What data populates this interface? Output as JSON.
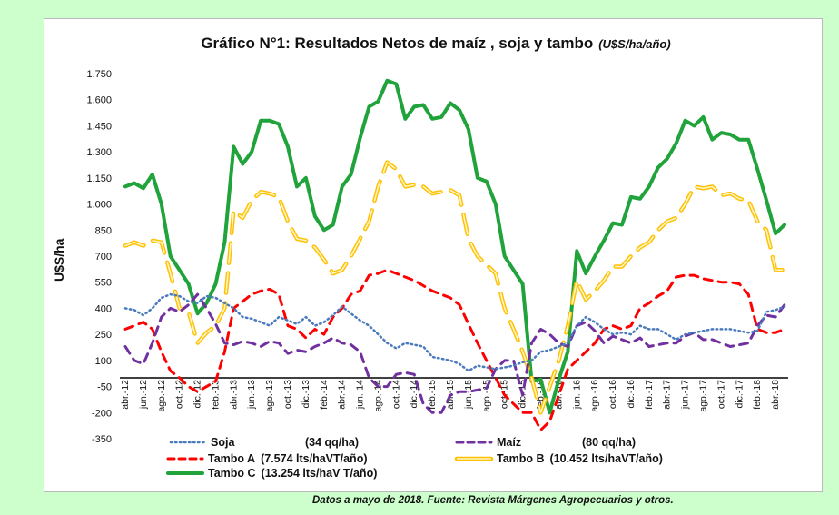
{
  "title": "Gráfico N°1: Resultados Netos de maíz , soja y tambo",
  "title_units": "(U$S/ha/año)",
  "footer": "Datos  a mayo de 2018. Fuente: Revista  Márgenes Agropecuarios  y otros.",
  "chart_data": {
    "type": "line",
    "ylabel": "U$S/ha",
    "ylim": [
      -350,
      1750
    ],
    "yticks": [
      -350,
      -200,
      -50,
      100,
      250,
      400,
      550,
      700,
      850,
      1000,
      1150,
      1300,
      1450,
      1600,
      1750
    ],
    "ytick_labels": [
      "-350",
      "-200",
      "-50",
      "100",
      "250",
      "400",
      "550",
      "700",
      "850",
      "1.000",
      "1.150",
      "1.300",
      "1.450",
      "1.600",
      "1.750"
    ],
    "x": [
      "abr.-12",
      "may.-12",
      "jun.-12",
      "jul.-12",
      "ago.-12",
      "sep.-12",
      "oct.-12",
      "nov.-12",
      "dic.-12",
      "ene.-13",
      "feb.-13",
      "mar.-13",
      "abr.-13",
      "may.-13",
      "jun.-13",
      "jul.-13",
      "ago.-13",
      "sep.-13",
      "oct.-13",
      "nov.-13",
      "dic.-13",
      "ene.-14",
      "feb.-14",
      "mar.-14",
      "abr.-14",
      "may.-14",
      "jun.-14",
      "jul.-14",
      "ago.-14",
      "sep.-14",
      "oct.-14",
      "nov.-14",
      "dic.-14",
      "ene.-15",
      "feb.-15",
      "mar.-15",
      "abr.-15",
      "may.-15",
      "jun.-15",
      "jul.-15",
      "ago.-15",
      "sep.-15",
      "oct.-15",
      "nov.-15",
      "dic.-15",
      "ene.-16",
      "feb.-16",
      "mar.-16",
      "abr.-16",
      "may.-16",
      "jun.-16",
      "jul.-16",
      "ago.-16",
      "sep.-16",
      "oct.-16",
      "nov.-16",
      "dic.-16",
      "ene.-17",
      "feb.-17",
      "mar.-17",
      "abr.-17",
      "may.-17",
      "jun.-17",
      "jul.-17",
      "ago.-17",
      "sep.-17",
      "oct.-17",
      "nov.-17",
      "dic.-17",
      "ene.-18",
      "feb.-18",
      "mar.-18",
      "abr.-18",
      "may.-18"
    ],
    "xtick_labels": [
      "abr.-12",
      "jun.-12",
      "ago.-12",
      "oct.-12",
      "dic.-12",
      "feb.-13",
      "abr.-13",
      "jun.-13",
      "ago.-13",
      "oct.-13",
      "dic.-13",
      "feb.-14",
      "abr.-14",
      "jun.-14",
      "ago.-14",
      "oct.-14",
      "dic.-14",
      "feb.-15",
      "abr.-15",
      "jun.-15",
      "ago.-15",
      "oct.-15",
      "dic.-15",
      "feb.-16",
      "abr.-16",
      "jun.-16",
      "ago.-16",
      "oct.-16",
      "dic.-16",
      "feb.-17",
      "abr.-17",
      "jun.-17",
      "ago.-17",
      "oct.-17",
      "dic.-17",
      "feb.-18",
      "abr.-18"
    ],
    "series": [
      {
        "name": "Soja",
        "detail": "(34 qq/ha)",
        "color": "#4a7bbd",
        "style": "dotted",
        "values": [
          400,
          390,
          360,
          400,
          460,
          480,
          470,
          440,
          430,
          470,
          460,
          430,
          400,
          350,
          340,
          320,
          300,
          350,
          330,
          310,
          350,
          300,
          320,
          360,
          410,
          370,
          330,
          300,
          250,
          200,
          170,
          200,
          190,
          180,
          120,
          110,
          100,
          80,
          40,
          70,
          60,
          50,
          60,
          70,
          90,
          100,
          150,
          160,
          180,
          200,
          300,
          350,
          320,
          280,
          250,
          260,
          250,
          300,
          280,
          280,
          250,
          220,
          250,
          260,
          270,
          280,
          280,
          280,
          270,
          260,
          270,
          380,
          390,
          410
        ]
      },
      {
        "name": "Maíz",
        "detail": "(80 qq/ha)",
        "color": "#7030a0",
        "style": "dashed",
        "values": [
          180,
          100,
          80,
          200,
          350,
          400,
          380,
          420,
          480,
          400,
          310,
          200,
          190,
          210,
          200,
          180,
          210,
          200,
          140,
          160,
          150,
          180,
          200,
          230,
          200,
          190,
          150,
          0,
          -50,
          -50,
          20,
          30,
          20,
          -150,
          -200,
          -200,
          -100,
          -80,
          -80,
          -70,
          -60,
          50,
          100,
          100,
          -100,
          200,
          280,
          250,
          200,
          180,
          300,
          320,
          270,
          200,
          240,
          220,
          200,
          230,
          180,
          190,
          200,
          200,
          240,
          260,
          220,
          220,
          200,
          180,
          190,
          200,
          300,
          360,
          350,
          420
        ]
      },
      {
        "name": "Tambo  A",
        "detail": "(7.574 lts/haVT/año)",
        "color": "#ff0000",
        "style": "dashed",
        "values": [
          280,
          300,
          320,
          280,
          150,
          40,
          0,
          -50,
          -80,
          -50,
          -20,
          150,
          400,
          440,
          480,
          500,
          510,
          480,
          300,
          280,
          230,
          280,
          250,
          350,
          400,
          480,
          500,
          590,
          600,
          620,
          600,
          580,
          560,
          530,
          500,
          480,
          460,
          420,
          310,
          200,
          100,
          0,
          -100,
          -150,
          -200,
          -200,
          -300,
          -250,
          -100,
          50,
          100,
          150,
          200,
          280,
          300,
          280,
          300,
          400,
          430,
          470,
          500,
          580,
          590,
          590,
          570,
          560,
          550,
          550,
          540,
          480,
          280,
          260,
          260,
          280
        ]
      },
      {
        "name": "Tambo B",
        "detail": "(10.452 lts/haVT/año)",
        "color": "#ffc000",
        "style": "double",
        "values": [
          760,
          780,
          760,
          790,
          780,
          600,
          400,
          380,
          200,
          260,
          300,
          400,
          960,
          920,
          1020,
          1070,
          1060,
          1040,
          900,
          800,
          790,
          750,
          680,
          600,
          620,
          700,
          800,
          900,
          1100,
          1240,
          1200,
          1100,
          1110,
          1100,
          1060,
          1070,
          1080,
          1050,
          800,
          700,
          650,
          600,
          400,
          280,
          150,
          0,
          -200,
          -50,
          100,
          300,
          560,
          450,
          500,
          560,
          640,
          640,
          700,
          750,
          780,
          850,
          900,
          920,
          1000,
          1100,
          1090,
          1100,
          1050,
          1060,
          1030,
          1020,
          900,
          850,
          620,
          620
        ]
      },
      {
        "name": "Tambo C",
        "detail": "(13.254 lts/haV T/año)",
        "color": "#1fa33a",
        "style": "solid",
        "values": [
          1100,
          1120,
          1090,
          1170,
          1000,
          700,
          620,
          540,
          370,
          430,
          540,
          780,
          1330,
          1230,
          1300,
          1480,
          1480,
          1460,
          1330,
          1100,
          1150,
          930,
          850,
          880,
          1100,
          1170,
          1380,
          1560,
          1590,
          1710,
          1690,
          1490,
          1560,
          1570,
          1490,
          1500,
          1580,
          1540,
          1430,
          1150,
          1130,
          1000,
          700,
          620,
          540,
          -20,
          -10,
          -200,
          -10,
          150,
          730,
          600,
          700,
          790,
          890,
          880,
          1040,
          1030,
          1100,
          1210,
          1260,
          1350,
          1480,
          1450,
          1500,
          1370,
          1410,
          1400,
          1370,
          1370,
          1200,
          1020,
          830,
          880
        ]
      }
    ]
  }
}
